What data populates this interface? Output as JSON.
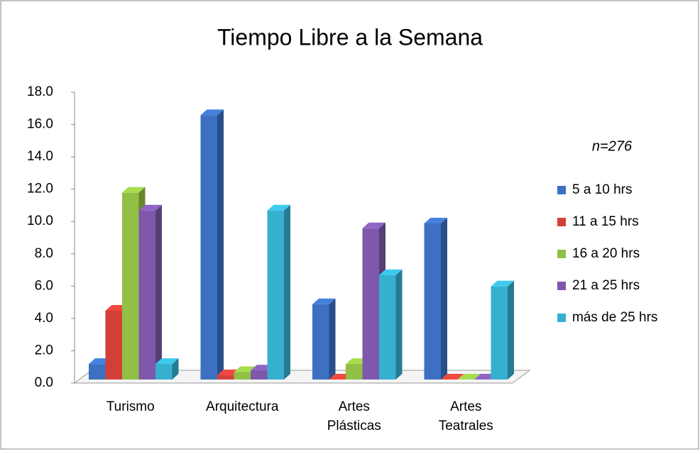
{
  "chart_data": {
    "type": "bar3d",
    "title": "Tiempo Libre a la Semana",
    "annotation": "n=276",
    "categories": [
      "Turismo",
      "Arquitectura",
      "Artes Plásticas",
      "Artes Teatrales"
    ],
    "series": [
      {
        "name": "5 a 10 hrs",
        "color": "#3c70c2",
        "values": [
          1.4,
          16.8,
          5.1,
          10.1
        ]
      },
      {
        "name": "11 a 15 hrs",
        "color": "#d23f38",
        "values": [
          4.7,
          0.7,
          0.0,
          0.0
        ]
      },
      {
        "name": "16 a 20 hrs",
        "color": "#92bf45",
        "values": [
          12.0,
          0.9,
          1.4,
          0.0
        ]
      },
      {
        "name": "21 a 25 hrs",
        "color": "#7d58ab",
        "values": [
          10.9,
          1.0,
          9.8,
          0.0
        ]
      },
      {
        "name": "más de 25 hrs",
        "color": "#35b0cf",
        "values": [
          1.4,
          10.9,
          6.9,
          6.2
        ]
      }
    ],
    "ylim": [
      0,
      18
    ],
    "yticks": [
      {
        "value": 0,
        "label": "0.0"
      },
      {
        "value": 2,
        "label": "2.0"
      },
      {
        "value": 4,
        "label": "4.0"
      },
      {
        "value": 6,
        "label": "6.0"
      },
      {
        "value": 8,
        "label": "8.0"
      },
      {
        "value": 10,
        "label": "10.0"
      },
      {
        "value": 12,
        "label": "12.0"
      },
      {
        "value": 14,
        "label": "14.0"
      },
      {
        "value": 16,
        "label": "16.0"
      },
      {
        "value": 18,
        "label": "18.0"
      }
    ],
    "legend": "right"
  }
}
